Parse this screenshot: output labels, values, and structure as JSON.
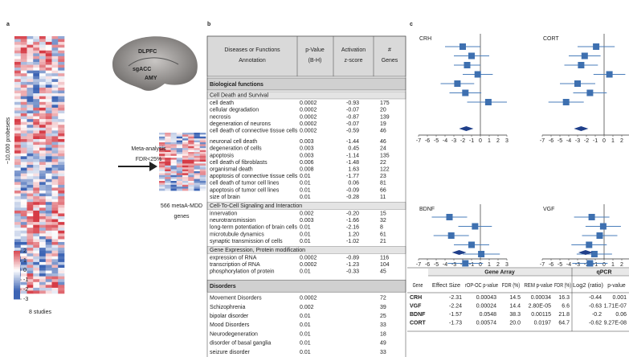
{
  "panel_labels": [
    "a",
    "b",
    "c"
  ],
  "panel_a": {
    "y_label": "~10,000 probesets",
    "x_label": "8 studies",
    "colorbar_ticks": [
      2,
      1,
      0,
      -1,
      -2,
      -3
    ],
    "brain_labels": [
      "DLPFC",
      "sgACC",
      "AMY"
    ],
    "arrow_text": [
      "Meta-analysis",
      "FDR<25%"
    ],
    "result_text": [
      "566 metaA-MDD",
      "genes"
    ]
  },
  "table_b": {
    "header": [
      [
        "Diseases or Functions",
        "Annotation"
      ],
      [
        "p-Value",
        "(B-H)"
      ],
      [
        "Activation",
        "z-score"
      ],
      [
        "#",
        "Genes"
      ]
    ],
    "sections": [
      {
        "title": "Biological functions",
        "groups": [
          {
            "title": "Cell Death and Survival",
            "rows": [
              [
                "cell death",
                "0.0002",
                "-0.93",
                "175"
              ],
              [
                "cellular degradation",
                "0.0002",
                "-0.07",
                "20"
              ],
              [
                "necrosis",
                "0.0002",
                "-0.87",
                "139"
              ],
              [
                "degeneration of neurons",
                "0.0002",
                "-0.07",
                "19"
              ],
              [
                "cell death of connective tissue cells",
                "0.0002",
                "-0.59",
                "46"
              ],
              [
                "neuronal cell death",
                "0.003",
                "-1.44",
                "46"
              ],
              [
                "degeneration of cells",
                "0.003",
                "0.45",
                "24"
              ],
              [
                "apoptosis",
                "0.003",
                "-1.14",
                "135"
              ],
              [
                "cell death of fibroblasts",
                "0.006",
                "-1.48",
                "22"
              ],
              [
                "organismal death",
                "0.008",
                "1.63",
                "122"
              ],
              [
                "apoptosis of connective tissue cells",
                "0.01",
                "-1.77",
                "23"
              ],
              [
                "cell death of tumor cell lines",
                "0.01",
                "0.06",
                "81"
              ],
              [
                "apoptosis of tumor cell lines",
                "0.01",
                "-0.09",
                "66"
              ],
              [
                "size of brain",
                "0.01",
                "-0.28",
                "11"
              ]
            ]
          },
          {
            "title": "Cell-To-Cell Signaling and Interaction",
            "rows": [
              [
                "innervation",
                "0.002",
                "-0.20",
                "15"
              ],
              [
                "neurotransmission",
                "0.003",
                "-1.66",
                "32"
              ],
              [
                "long-term potentiation of brain cells",
                "0.01",
                "-2.16",
                "8"
              ],
              [
                "microtubule dynamics",
                "0.01",
                "1.20",
                "61"
              ],
              [
                "synaptic transmission of cells",
                "0.01",
                "-1.02",
                "21"
              ]
            ]
          },
          {
            "title": "Gene Expression, Protein modification",
            "rows": [
              [
                "expression of RNA",
                "0.0002",
                "-0.89",
                "116"
              ],
              [
                "transcription of RNA",
                "0.0002",
                "-1.23",
                "104"
              ],
              [
                "phosphorylation of protein",
                "0.01",
                "-0.33",
                "45"
              ]
            ]
          }
        ]
      },
      {
        "title": "Disorders",
        "groups": [
          {
            "rows": [
              [
                "Movement Disorders",
                "0.0002",
                null,
                "72"
              ],
              [
                "Schizophrenia",
                "0.002",
                null,
                "39"
              ],
              [
                "bipolar disorder",
                "0.01",
                null,
                "25"
              ],
              [
                "Mood Disorders",
                "0.01",
                null,
                "33"
              ],
              [
                "Neurodegeneration",
                "0.01",
                null,
                "18"
              ],
              [
                "disorder of basal ganglia",
                "0.01",
                null,
                "49"
              ],
              [
                "seizure disorder",
                "0.01",
                null,
                "33"
              ]
            ]
          }
        ]
      }
    ]
  },
  "forest": {
    "xlim": [
      -7,
      3
    ],
    "xticks": [
      -7,
      -6,
      -5,
      -4,
      -3,
      -2,
      -1,
      0,
      1,
      2,
      3
    ],
    "plots": [
      {
        "gene": "CRH",
        "effects": [
          -2.0,
          -1.0,
          -1.5,
          -0.3,
          -2.6,
          -1.7,
          0.9
        ],
        "ci_low": [
          -4.0,
          -3.0,
          -3.0,
          -2.0,
          -4.5,
          -3.5,
          -1.5
        ],
        "ci_high": [
          0.0,
          1.0,
          0.0,
          1.4,
          -0.7,
          0.1,
          3.0
        ],
        "summary": -1.6
      },
      {
        "gene": "CORT",
        "effects": [
          -0.9,
          -2.2,
          -2.6,
          0.6,
          -3.0,
          -1.6,
          -4.3
        ],
        "ci_low": [
          -3.0,
          -4.0,
          -4.5,
          -1.2,
          -5.0,
          -3.5,
          -6.3
        ],
        "ci_high": [
          1.2,
          -0.4,
          -0.7,
          2.4,
          -1.0,
          0.3,
          -2.3
        ],
        "summary": -2.6
      },
      {
        "gene": "BDNF",
        "effects": [
          -3.5,
          -0.6,
          -3.3,
          -1.0,
          0.1,
          -1.7,
          -1.5
        ],
        "ci_low": [
          -5.5,
          -2.5,
          -5.3,
          -3.0,
          -2.0,
          -3.7,
          -3.5
        ],
        "ci_high": [
          -1.5,
          1.3,
          -1.3,
          1.0,
          2.2,
          0.3,
          0.5
        ],
        "summary": -2.4
      },
      {
        "gene": "VGF",
        "effects": [
          -1.4,
          -0.1,
          -0.5,
          -1.7,
          -1.1,
          -1.6,
          -2.6
        ],
        "ci_low": [
          -3.4,
          -2.1,
          -2.5,
          -3.7,
          -3.1,
          -3.6,
          -4.6
        ],
        "ci_high": [
          0.6,
          1.9,
          1.5,
          0.3,
          0.9,
          0.4,
          -0.6
        ],
        "summary": -2.1
      }
    ]
  },
  "table_c": {
    "groups": [
      "Gene Array",
      "qPCR"
    ],
    "columns": [
      "Gene",
      "Effect Size",
      "rOP-OC p-value",
      "FDR (%)",
      "REM p-value",
      "FDR (%)",
      "Log2 (ratio)",
      "p-value"
    ],
    "rows": [
      [
        "CRH",
        "-2.31",
        "0.00043",
        "14.5",
        "0.00034",
        "16.3",
        "-0.44",
        "0.001"
      ],
      [
        "VGF",
        "-2.24",
        "0.00024",
        "14.4",
        "2.80E-05",
        "6.6",
        "-0.63",
        "1.71E-07"
      ],
      [
        "BDNF",
        "-1.57",
        "0.0548",
        "38.3",
        "0.00115",
        "21.8",
        "-0.2",
        "0.06"
      ],
      [
        "CORT",
        "-1.73",
        "0.00574",
        "20.0",
        "0.0197",
        "64.7",
        "-0.62",
        "9.27E-08"
      ]
    ]
  }
}
